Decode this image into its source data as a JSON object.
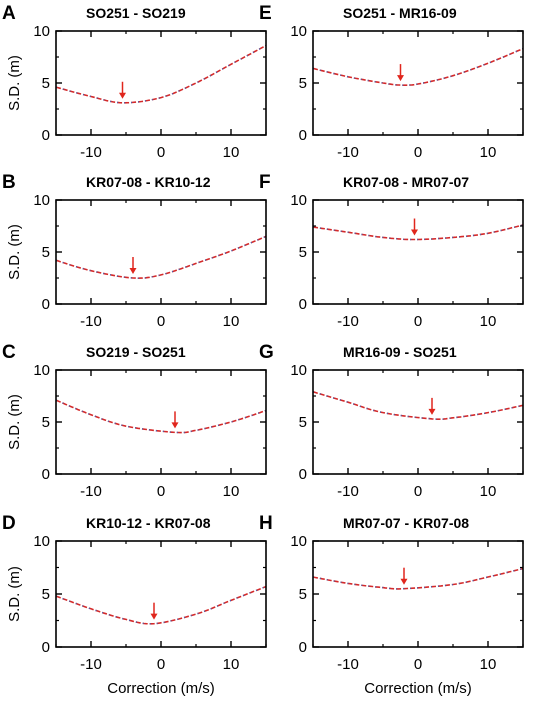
{
  "chart_data": [
    {
      "type": "line",
      "letter": "A",
      "title": "SO251 - SO219",
      "ylabel": "S.D. (m)",
      "xlabel": "",
      "xlim": [
        -15,
        15
      ],
      "ylim": [
        0,
        10
      ],
      "xticks": [
        "-10",
        "0",
        "10"
      ],
      "yticks": [
        "0",
        "5",
        "10"
      ],
      "min_marker": {
        "x": -5.5,
        "y": 3.1
      },
      "series": [
        {
          "values": [
            [
              -15,
              4.6
            ],
            [
              -10,
              3.7
            ],
            [
              -5.5,
              3.1
            ],
            [
              0,
              3.6
            ],
            [
              5,
              5.0
            ],
            [
              10,
              6.8
            ],
            [
              15,
              8.6
            ]
          ]
        }
      ]
    },
    {
      "type": "line",
      "letter": "E",
      "title": "SO251 - MR16-09",
      "ylabel": "",
      "xlabel": "",
      "xlim": [
        -15,
        15
      ],
      "ylim": [
        0,
        10
      ],
      "xticks": [
        "-10",
        "0",
        "10"
      ],
      "yticks": [
        "0",
        "5",
        "10"
      ],
      "min_marker": {
        "x": -2.5,
        "y": 4.8
      },
      "series": [
        {
          "values": [
            [
              -15,
              6.4
            ],
            [
              -10,
              5.6
            ],
            [
              -5,
              5.0
            ],
            [
              -2.5,
              4.8
            ],
            [
              0,
              4.9
            ],
            [
              5,
              5.7
            ],
            [
              10,
              6.9
            ],
            [
              15,
              8.3
            ]
          ]
        }
      ]
    },
    {
      "type": "line",
      "letter": "B",
      "title": "KR07-08 - KR10-12",
      "ylabel": "S.D. (m)",
      "xlabel": "",
      "xlim": [
        -15,
        15
      ],
      "ylim": [
        0,
        10
      ],
      "xticks": [
        "-10",
        "0",
        "10"
      ],
      "yticks": [
        "0",
        "5",
        "10"
      ],
      "min_marker": {
        "x": -4,
        "y": 2.5
      },
      "series": [
        {
          "values": [
            [
              -15,
              4.2
            ],
            [
              -10,
              3.2
            ],
            [
              -4,
              2.5
            ],
            [
              0,
              2.8
            ],
            [
              5,
              3.9
            ],
            [
              10,
              5.1
            ],
            [
              15,
              6.5
            ]
          ]
        }
      ]
    },
    {
      "type": "line",
      "letter": "F",
      "title": "KR07-08 - MR07-07",
      "ylabel": "",
      "xlabel": "",
      "xlim": [
        -15,
        15
      ],
      "ylim": [
        0,
        10
      ],
      "xticks": [
        "-10",
        "0",
        "10"
      ],
      "yticks": [
        "0",
        "5",
        "10"
      ],
      "min_marker": {
        "x": -0.5,
        "y": 6.2
      },
      "series": [
        {
          "values": [
            [
              -15,
              7.4
            ],
            [
              -10,
              6.9
            ],
            [
              -5,
              6.4
            ],
            [
              -0.5,
              6.2
            ],
            [
              5,
              6.4
            ],
            [
              10,
              6.8
            ],
            [
              15,
              7.6
            ]
          ]
        }
      ]
    },
    {
      "type": "line",
      "letter": "C",
      "title": "SO219 - SO251",
      "ylabel": "S.D. (m)",
      "xlabel": "",
      "xlim": [
        -15,
        15
      ],
      "ylim": [
        0,
        10
      ],
      "xticks": [
        "-10",
        "0",
        "10"
      ],
      "yticks": [
        "0",
        "5",
        "10"
      ],
      "min_marker": {
        "x": 2,
        "y": 4.0
      },
      "series": [
        {
          "values": [
            [
              -15,
              7.1
            ],
            [
              -10,
              5.7
            ],
            [
              -5,
              4.6
            ],
            [
              2,
              4.0
            ],
            [
              5,
              4.2
            ],
            [
              10,
              5.0
            ],
            [
              15,
              6.1
            ]
          ]
        }
      ]
    },
    {
      "type": "line",
      "letter": "G",
      "title": "MR16-09 - SO251",
      "ylabel": "",
      "xlabel": "",
      "xlim": [
        -15,
        15
      ],
      "ylim": [
        0,
        10
      ],
      "xticks": [
        "-10",
        "0",
        "10"
      ],
      "yticks": [
        "0",
        "5",
        "10"
      ],
      "min_marker": {
        "x": 2,
        "y": 5.3
      },
      "series": [
        {
          "values": [
            [
              -15,
              7.9
            ],
            [
              -10,
              6.9
            ],
            [
              -5,
              5.9
            ],
            [
              2,
              5.3
            ],
            [
              5,
              5.4
            ],
            [
              10,
              5.9
            ],
            [
              15,
              6.6
            ]
          ]
        }
      ]
    },
    {
      "type": "line",
      "letter": "D",
      "title": "KR10-12 - KR07-08",
      "ylabel": "S.D. (m)",
      "xlabel": "Correction (m/s)",
      "xlim": [
        -15,
        15
      ],
      "ylim": [
        0,
        10
      ],
      "xticks": [
        "-10",
        "0",
        "10"
      ],
      "yticks": [
        "0",
        "5",
        "10"
      ],
      "min_marker": {
        "x": -1,
        "y": 2.2
      },
      "series": [
        {
          "values": [
            [
              -15,
              4.8
            ],
            [
              -10,
              3.6
            ],
            [
              -5,
              2.6
            ],
            [
              -1,
              2.2
            ],
            [
              5,
              3.1
            ],
            [
              10,
              4.4
            ],
            [
              15,
              5.7
            ]
          ]
        }
      ]
    },
    {
      "type": "line",
      "letter": "H",
      "title": "MR07-07 - KR07-08",
      "ylabel": "",
      "xlabel": "Correction (m/s)",
      "xlim": [
        -15,
        15
      ],
      "ylim": [
        0,
        10
      ],
      "xticks": [
        "-10",
        "0",
        "10"
      ],
      "yticks": [
        "0",
        "5",
        "10"
      ],
      "min_marker": {
        "x": -2,
        "y": 5.5
      },
      "series": [
        {
          "values": [
            [
              -15,
              6.6
            ],
            [
              -10,
              6.0
            ],
            [
              -5,
              5.6
            ],
            [
              -2,
              5.5
            ],
            [
              5,
              5.9
            ],
            [
              10,
              6.6
            ],
            [
              15,
              7.4
            ]
          ]
        }
      ]
    }
  ],
  "colors": {
    "curve": "#d42a2a",
    "curve_dots": "#4a5fb0",
    "arrow": "#e0261d",
    "frame": "#000000"
  }
}
